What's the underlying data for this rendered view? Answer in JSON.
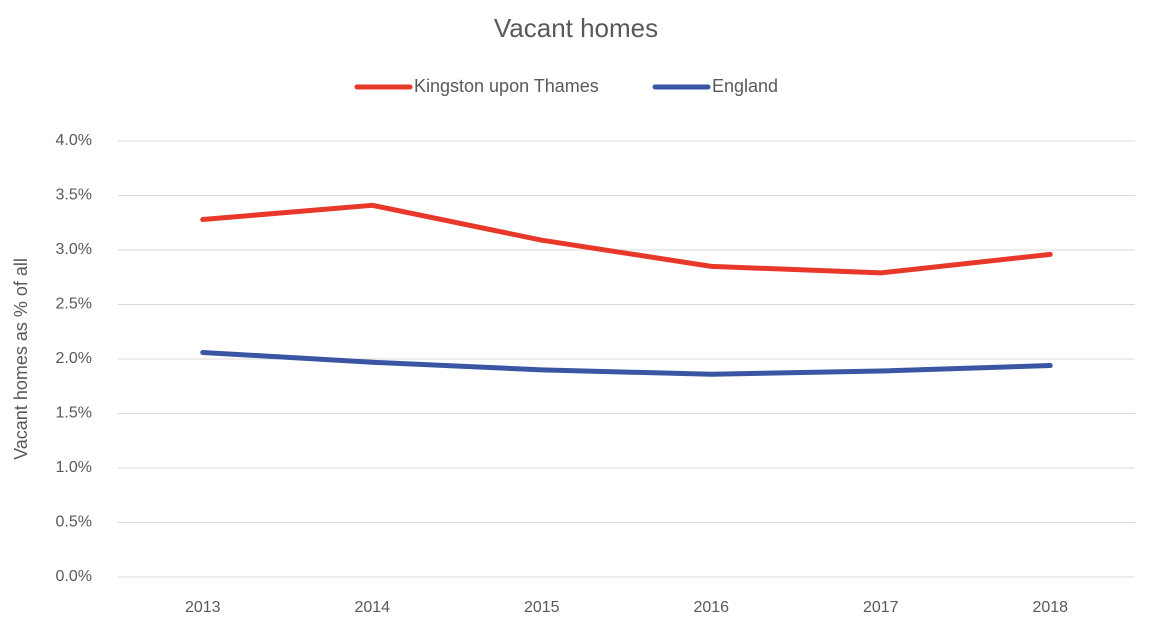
{
  "chart_data": {
    "type": "line",
    "title": "Vacant homes",
    "y_label": "Vacant homes as % of all",
    "categories": [
      "2013",
      "2014",
      "2015",
      "2016",
      "2017",
      "2018"
    ],
    "series": [
      {
        "name": "Kingston upon Thames",
        "color": "#e8382a",
        "values": [
          3.28,
          3.41,
          3.09,
          2.85,
          2.79,
          2.96
        ]
      },
      {
        "name": "England",
        "color": "#3a55a4",
        "values": [
          2.06,
          1.97,
          1.9,
          1.86,
          1.89,
          1.94
        ]
      }
    ],
    "ylim": [
      0,
      4
    ],
    "yticks": [
      {
        "value": 0,
        "label": "0.0%"
      },
      {
        "value": 0.5,
        "label": "0.5%"
      },
      {
        "value": 1,
        "label": "1.0%"
      },
      {
        "value": 1.5,
        "label": "1.5%"
      },
      {
        "value": 2,
        "label": "2.0%"
      },
      {
        "value": 2.5,
        "label": "2.5%"
      },
      {
        "value": 3,
        "label": "3.0%"
      },
      {
        "value": 3.5,
        "label": "3.5%"
      },
      {
        "value": 4,
        "label": "4.0%"
      }
    ],
    "grid": true,
    "legend": "top"
  }
}
